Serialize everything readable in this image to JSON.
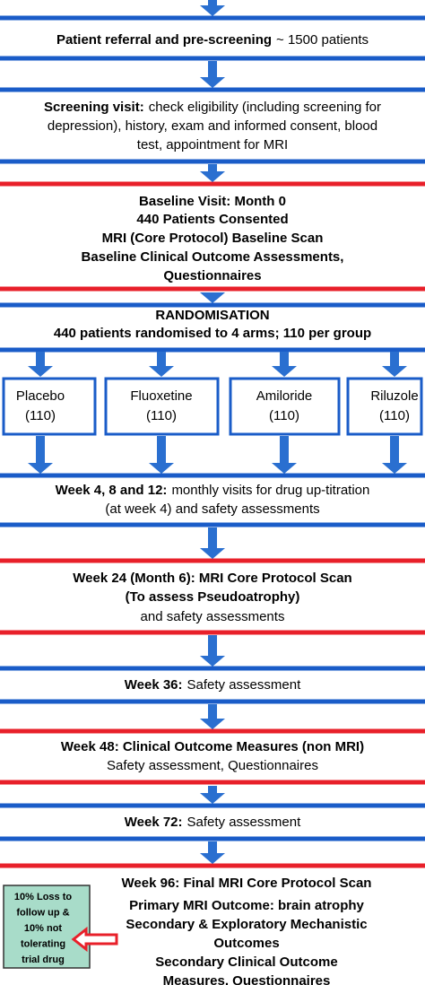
{
  "steps": [
    {
      "lines": [
        {
          "bold": "Patient referral and pre-screening",
          "text": "~ 1500 patients"
        }
      ]
    },
    {
      "lines": [
        {
          "bold": "Screening visit:",
          "text": "check eligibility (including screening for"
        },
        {
          "text": "depression), history, exam and informed consent, blood"
        },
        {
          "text": "test, appointment for MRI"
        }
      ]
    },
    {
      "lines": [
        {
          "bold": "Baseline Visit: Month 0"
        },
        {
          "bold": "440 Patients Consented"
        },
        {
          "bold": "MRI (Core Protocol) Baseline Scan"
        },
        {
          "bold": "Baseline Clinical Outcome Assessments,"
        },
        {
          "bold": "Questionnaires"
        }
      ]
    },
    {
      "lines": [
        {
          "bold": "RANDOMISATION"
        },
        {
          "bold": "440 patients randomised to 4 arms; 110 per group"
        }
      ]
    },
    {
      "lines": [
        {
          "bold": "Week 4, 8 and 12:",
          "text": "monthly visits for drug up-titration"
        },
        {
          "text": "(at week 4) and safety assessments"
        }
      ]
    },
    {
      "lines": [
        {
          "bold": "Week 24 (Month 6): MRI Core Protocol Scan"
        },
        {
          "bold": "(To assess Pseudoatrophy)"
        },
        {
          "text": "and safety assessments"
        }
      ]
    },
    {
      "lines": [
        {
          "bold": "Week 36:",
          "text": "Safety assessment"
        }
      ]
    },
    {
      "lines": [
        {
          "bold": "Week 48: Clinical Outcome Measures (non MRI)"
        },
        {
          "text": "Safety assessment, Questionnaires"
        }
      ]
    },
    {
      "lines": [
        {
          "bold": "Week 72:",
          "text": "Safety assessment"
        }
      ]
    },
    {
      "lines": [
        {
          "bold": "Week 96: Final MRI Core Protocol Scan"
        },
        {
          "bold": "Primary MRI Outcome: brain atrophy"
        },
        {
          "bold": "Secondary & Exploratory Mechanistic"
        },
        {
          "bold": "Outcomes"
        },
        {
          "bold": "Secondary Clinical Outcome"
        },
        {
          "bold": "Measures, Questionnaires"
        }
      ]
    }
  ],
  "arms": [
    {
      "name": "Placebo",
      "count": "(110)"
    },
    {
      "name": "Fluoxetine",
      "count": "(110)"
    },
    {
      "name": "Amiloride",
      "count": "(110)"
    },
    {
      "name": "Riluzole",
      "count": "(110)"
    }
  ],
  "side_note": [
    "10% Loss to",
    "follow up &",
    "10% not",
    "tolerating",
    "trial drug"
  ]
}
